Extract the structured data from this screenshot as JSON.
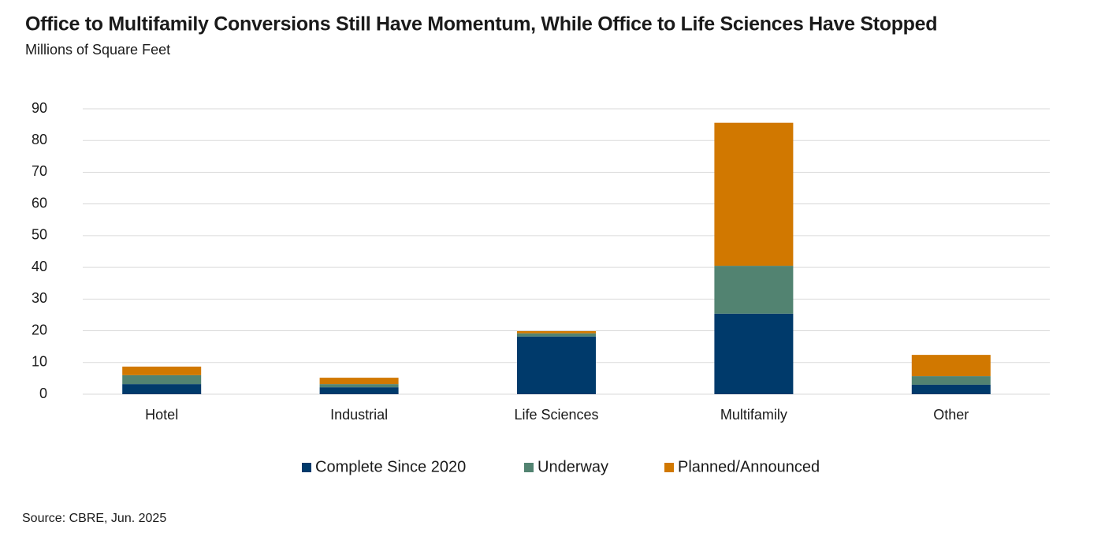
{
  "chart_data": {
    "type": "stacked_bar",
    "title": "Office to Multifamily Conversions Still Have Momentum, While Office to Life Sciences Have Stopped",
    "subtitle": "Millions of Square Feet",
    "source": "Source: CBRE, Jun. 2025",
    "categories": [
      "Hotel",
      "Industrial",
      "Life Sciences",
      "Multifamily",
      "Other"
    ],
    "series": [
      {
        "name": "Complete Since 2020",
        "color": "#003a6b",
        "values": [
          3.2,
          2.2,
          18.2,
          25.4,
          3.0
        ]
      },
      {
        "name": "Underway",
        "color": "#528371",
        "values": [
          2.8,
          1.0,
          1.0,
          15.1,
          2.7
        ]
      },
      {
        "name": "Planned/Announced",
        "color": "#d17800",
        "values": [
          2.7,
          2.0,
          0.7,
          45.1,
          6.7
        ]
      }
    ],
    "ylim": [
      0,
      90
    ],
    "yticks": [
      0,
      10,
      20,
      30,
      40,
      50,
      60,
      70,
      80,
      90
    ],
    "grid": true,
    "legend": "bottom"
  }
}
